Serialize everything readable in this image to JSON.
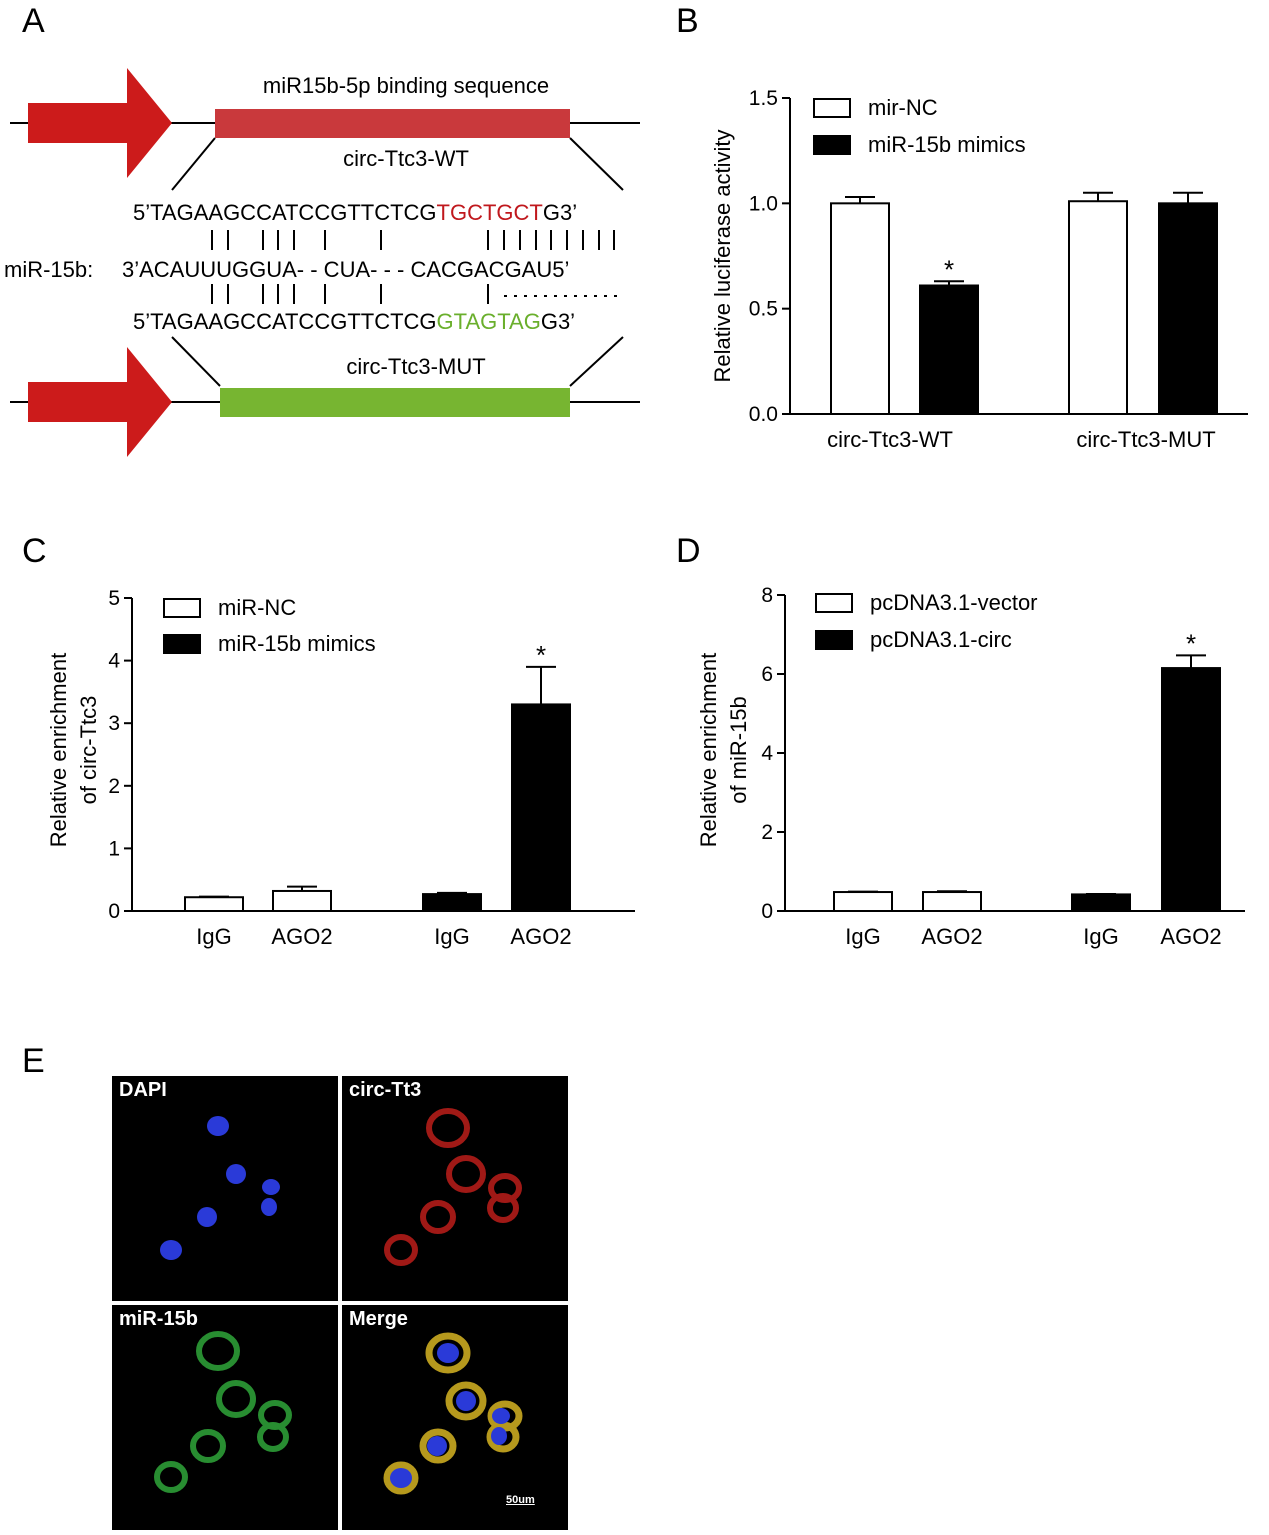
{
  "panel_labels": {
    "a": "A",
    "b": "B",
    "c": "C",
    "d": "D",
    "e": "E"
  },
  "panel_a": {
    "binding_title": "miR15b-5p binding sequence",
    "wt_label": "circ-Ttc3-WT",
    "mut_label": "circ-Ttc3-MUT",
    "mirna_label": "miR-15b:",
    "wt_seq": {
      "prefix": "5’TAGAAGCCATCCGTTCTCG",
      "highlight": "TGCTGCT",
      "suffix": "G3’"
    },
    "mirna_seq": "3’ACAUUUGGUA- - CUA- - - CACGACGAU5’",
    "mut_seq": {
      "prefix": "5’TAGAAGCCATCCGTTCTCG",
      "highlight": "GTAGTAG",
      "suffix": "G3’"
    },
    "colors": {
      "arrow": "#cc1b1b",
      "wt_box": "#c9393c",
      "mut_box": "#77b531",
      "wt_text": "#c0181d",
      "mut_text": "#6aaf2c"
    }
  },
  "chart_data": [
    {
      "type": "bar",
      "panel": "B",
      "categories": [
        "circ-Ttc3-WT",
        "circ-Ttc3-MUT"
      ],
      "series": [
        {
          "name": "mir-NC",
          "values": [
            1.0,
            1.01
          ],
          "errors": [
            0.03,
            0.04
          ],
          "fill": "#ffffff"
        },
        {
          "name": "miR-15b mimics",
          "values": [
            0.61,
            1.0
          ],
          "errors": [
            0.02,
            0.05
          ],
          "fill": "#000000"
        }
      ],
      "significance": [
        {
          "category": 0,
          "series": 1,
          "mark": "*"
        }
      ],
      "ylabel": "Relative  luciferase  activity",
      "ylim": [
        0,
        1.5
      ],
      "yticks": [
        "0.0",
        "0.5",
        "1.0",
        "1.5"
      ],
      "legend": "top-left"
    },
    {
      "type": "bar",
      "panel": "C",
      "categories": [
        "IgG",
        "AGO2",
        "IgG",
        "AGO2"
      ],
      "series": [
        {
          "name": "miR-NC",
          "fill": "#ffffff"
        },
        {
          "name": "miR-15b mimics",
          "fill": "#000000"
        }
      ],
      "bars": [
        {
          "value": 0.22,
          "error": 0.01,
          "series": 0
        },
        {
          "value": 0.32,
          "error": 0.07,
          "series": 0
        },
        {
          "value": 0.27,
          "error": 0.02,
          "series": 1
        },
        {
          "value": 3.3,
          "error": 0.6,
          "series": 1
        }
      ],
      "significance": [
        {
          "bar": 3,
          "mark": "*"
        }
      ],
      "ylabel": [
        "Relative enrichment",
        "of circ-Ttc3"
      ],
      "ylim": [
        0,
        5
      ],
      "yticks": [
        "0",
        "1",
        "2",
        "3",
        "4",
        "5"
      ],
      "legend": "top-left"
    },
    {
      "type": "bar",
      "panel": "D",
      "categories": [
        "IgG",
        "AGO2",
        "IgG",
        "AGO2"
      ],
      "series": [
        {
          "name": "pcDNA3.1-vector",
          "fill": "#ffffff"
        },
        {
          "name": "pcDNA3.1-circ",
          "fill": "#000000"
        }
      ],
      "bars": [
        {
          "value": 0.48,
          "error": 0.01,
          "series": 0
        },
        {
          "value": 0.48,
          "error": 0.02,
          "series": 0
        },
        {
          "value": 0.42,
          "error": 0.01,
          "series": 1
        },
        {
          "value": 6.15,
          "error": 0.32,
          "series": 1
        }
      ],
      "significance": [
        {
          "bar": 3,
          "mark": "*"
        }
      ],
      "ylabel": [
        "Relative enrichment",
        "of miR-15b"
      ],
      "ylim": [
        0,
        8
      ],
      "yticks": [
        "0",
        "2",
        "4",
        "6",
        "8"
      ],
      "legend": "top-left"
    }
  ],
  "panel_e": {
    "dapi_label": "DAPI",
    "circ_label": "circ-Tt3",
    "mir_label": "miR-15b",
    "merge_label": "Merge",
    "scale_bar": "50um",
    "colors": {
      "dapi": "#2a3ad8",
      "circ": "#c8201c",
      "mir": "#2fa63a",
      "merge": "#d6b423"
    }
  }
}
